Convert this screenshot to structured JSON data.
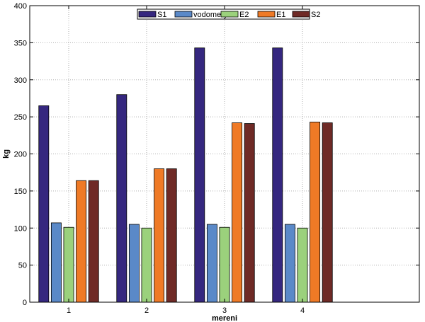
{
  "chart_data": {
    "type": "bar",
    "title": "",
    "xlabel": "mereni",
    "ylabel": "kg",
    "categories": [
      "1",
      "2",
      "3",
      "4"
    ],
    "ylim": [
      0,
      400
    ],
    "yticks": [
      0,
      50,
      100,
      150,
      200,
      250,
      300,
      350,
      400
    ],
    "grid": true,
    "legend_position": "top-center",
    "series": [
      {
        "name": "S1",
        "color": "#35277f",
        "values": [
          265,
          280,
          343,
          343
        ]
      },
      {
        "name": "vodomery",
        "color": "#5a89c8",
        "values": [
          107,
          105,
          105,
          105
        ]
      },
      {
        "name": "E2",
        "color": "#9bd17c",
        "values": [
          101,
          100,
          101,
          100
        ]
      },
      {
        "name": "E1",
        "color": "#ef7a26",
        "values": [
          164,
          180,
          242,
          243
        ]
      },
      {
        "name": "S2",
        "color": "#6f2a26",
        "values": [
          164,
          180,
          241,
          242
        ]
      }
    ]
  }
}
